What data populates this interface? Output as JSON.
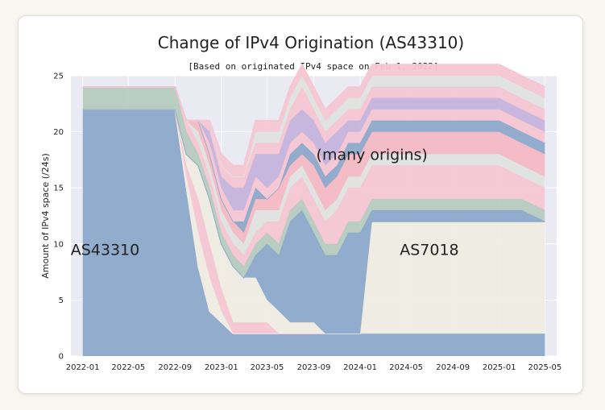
{
  "chart_data": {
    "type": "area",
    "title": "Change of IPv4 Origination (AS43310)",
    "subtitle": "[Based on originated IPv4 space on Feb 1, 2022]",
    "xlabel": "",
    "ylabel": "Amount of IPv4 space (/24s)",
    "x_ticks": [
      "2022-01",
      "2022-05",
      "2022-09",
      "2023-01",
      "2023-05",
      "2023-09",
      "2024-01",
      "2024-05",
      "2024-09",
      "2025-01",
      "2025-05"
    ],
    "y_ticks": [
      "0",
      "5",
      "10",
      "15",
      "20",
      "25"
    ],
    "ylim": [
      0,
      25
    ],
    "xlim": [
      "2021-12-01",
      "2025-06-01"
    ],
    "grid": true,
    "stacked": true,
    "x": [
      "2022-01",
      "2022-05",
      "2022-09",
      "2022-10",
      "2022-11",
      "2022-12",
      "2023-01",
      "2023-02",
      "2023-03",
      "2023-04",
      "2023-05",
      "2023-06",
      "2023-07",
      "2023-08",
      "2023-09",
      "2023-10",
      "2023-11",
      "2023-12",
      "2024-01",
      "2024-02",
      "2024-03",
      "2024-05",
      "2024-07",
      "2024-09",
      "2024-11",
      "2025-01",
      "2025-03",
      "2025-05"
    ],
    "series": [
      {
        "name": "AS43310",
        "color": "#8ca9c9",
        "values": [
          22,
          22,
          22,
          15,
          8,
          4,
          3,
          2,
          2,
          2,
          2,
          2,
          2,
          2,
          2,
          2,
          2,
          2,
          2,
          2,
          2,
          2,
          2,
          2,
          2,
          2,
          2,
          2
        ]
      },
      {
        "name": "AS7018",
        "color": "#efede2",
        "values": [
          0,
          0,
          0,
          0,
          0,
          0,
          0,
          0,
          0,
          0,
          0,
          0,
          0,
          0,
          0,
          0,
          0,
          0,
          0,
          10,
          10,
          10,
          10,
          10,
          10,
          10,
          10,
          10
        ]
      },
      {
        "color": "#efede2",
        "values": [
          0,
          0,
          0,
          1,
          3,
          3,
          1,
          0,
          0,
          0,
          0,
          0,
          0,
          0,
          0,
          0,
          0,
          0,
          0,
          0,
          0,
          0,
          0,
          0,
          0,
          0,
          0,
          0
        ]
      },
      {
        "color": "#f5c6d3",
        "values": [
          0,
          0,
          0,
          1,
          3,
          3,
          2,
          1,
          1,
          1,
          1,
          0,
          0,
          0,
          0,
          0,
          0,
          0,
          0,
          0,
          0,
          0,
          0,
          0,
          0,
          0,
          0,
          0
        ]
      },
      {
        "color": "#efede2",
        "values": [
          0,
          0,
          0,
          1,
          3,
          4,
          4,
          5,
          4,
          4,
          2,
          2,
          1,
          1,
          1,
          0,
          0,
          0,
          0,
          0,
          0,
          0,
          0,
          0,
          0,
          0,
          0,
          0
        ]
      },
      {
        "color": "#8ca9c9",
        "values": [
          0,
          0,
          0,
          0,
          0,
          0,
          0,
          0,
          0,
          2,
          5,
          5,
          9,
          10,
          8,
          7,
          7,
          9,
          9,
          0,
          0,
          0,
          0,
          0,
          0,
          0,
          0,
          0
        ]
      },
      {
        "color": "#8ca9c9",
        "values": [
          0,
          0,
          0,
          0,
          0,
          0,
          0,
          0,
          0,
          0,
          0,
          0,
          0,
          0,
          0,
          0,
          0,
          0,
          0,
          1,
          1,
          1,
          1,
          1,
          1,
          1,
          1,
          0
        ]
      },
      {
        "color": "#b6cbbf",
        "values": [
          2,
          2,
          2,
          2,
          1,
          1,
          1,
          1,
          1,
          1,
          1,
          1,
          1,
          1,
          1,
          1,
          1,
          1,
          1,
          1,
          1,
          1,
          1,
          1,
          1,
          1,
          1,
          1
        ]
      },
      {
        "color": "#f5c6d3",
        "values": [
          0,
          0,
          0,
          1,
          1,
          1,
          1,
          1,
          1,
          1,
          1,
          2,
          2,
          2,
          2,
          2,
          3,
          3,
          3,
          3,
          3,
          3,
          3,
          3,
          3,
          3,
          2,
          2
        ]
      },
      {
        "color": "#dfe3e0",
        "values": [
          0,
          0,
          0,
          0,
          1,
          1,
          1,
          1,
          1,
          2,
          1,
          1,
          1,
          1,
          1,
          1,
          1,
          1,
          1,
          1,
          1,
          1,
          1,
          1,
          1,
          1,
          1,
          1
        ]
      },
      {
        "color": "#f3b9c4",
        "values": [
          0,
          0,
          0,
          0,
          1,
          1,
          1,
          1,
          1,
          1,
          1,
          2,
          1,
          1,
          2,
          2,
          2,
          2,
          2,
          2,
          2,
          2,
          2,
          2,
          2,
          2,
          2,
          2
        ]
      },
      {
        "color": "#8ca9c9",
        "values": [
          0,
          0,
          0,
          0,
          0,
          0,
          0,
          0,
          1,
          1,
          0,
          0,
          1,
          1,
          1,
          1,
          1,
          1,
          1,
          1,
          1,
          1,
          1,
          1,
          1,
          1,
          1,
          1
        ]
      },
      {
        "color": "#f5c6d3",
        "values": [
          0,
          0,
          0,
          0,
          0,
          1,
          1,
          1,
          1,
          1,
          1,
          1,
          1,
          1,
          1,
          1,
          1,
          1,
          1,
          1,
          1,
          1,
          1,
          1,
          1,
          1,
          1,
          1
        ]
      },
      {
        "color": "#c5b4dc",
        "values": [
          0,
          0,
          0,
          0,
          0,
          1,
          1,
          2,
          2,
          2,
          3,
          2,
          2,
          2,
          2,
          2,
          2,
          1,
          1,
          1,
          1,
          1,
          1,
          1,
          1,
          1,
          1,
          1
        ]
      },
      {
        "color": "#f5c6d3",
        "values": [
          0,
          0,
          0,
          0,
          0,
          1,
          1,
          1,
          1,
          1,
          1,
          1,
          1,
          2,
          1,
          1,
          1,
          1,
          1,
          1,
          1,
          1,
          1,
          1,
          1,
          1,
          1,
          1
        ]
      },
      {
        "color": "#dfe3e0",
        "values": [
          0,
          0,
          0,
          0,
          0,
          0,
          0,
          0,
          0,
          1,
          1,
          1,
          1,
          1,
          1,
          1,
          1,
          1,
          1,
          1,
          1,
          1,
          1,
          1,
          1,
          1,
          1,
          1
        ]
      },
      {
        "color": "#f5c6d3",
        "values": [
          0,
          0,
          0,
          0,
          0,
          0,
          1,
          1,
          1,
          1,
          1,
          1,
          1,
          1,
          1,
          1,
          1,
          1,
          1,
          1,
          1,
          1,
          1,
          1,
          1,
          1,
          1,
          1
        ]
      }
    ],
    "annotations": [
      {
        "text": "AS43310",
        "x": "2022-03",
        "y": 9
      },
      {
        "text": "AS7018",
        "x": "2024-07",
        "y": 9
      },
      {
        "text": "(many origins)",
        "x": "2024-02",
        "y": 17.5
      }
    ]
  }
}
